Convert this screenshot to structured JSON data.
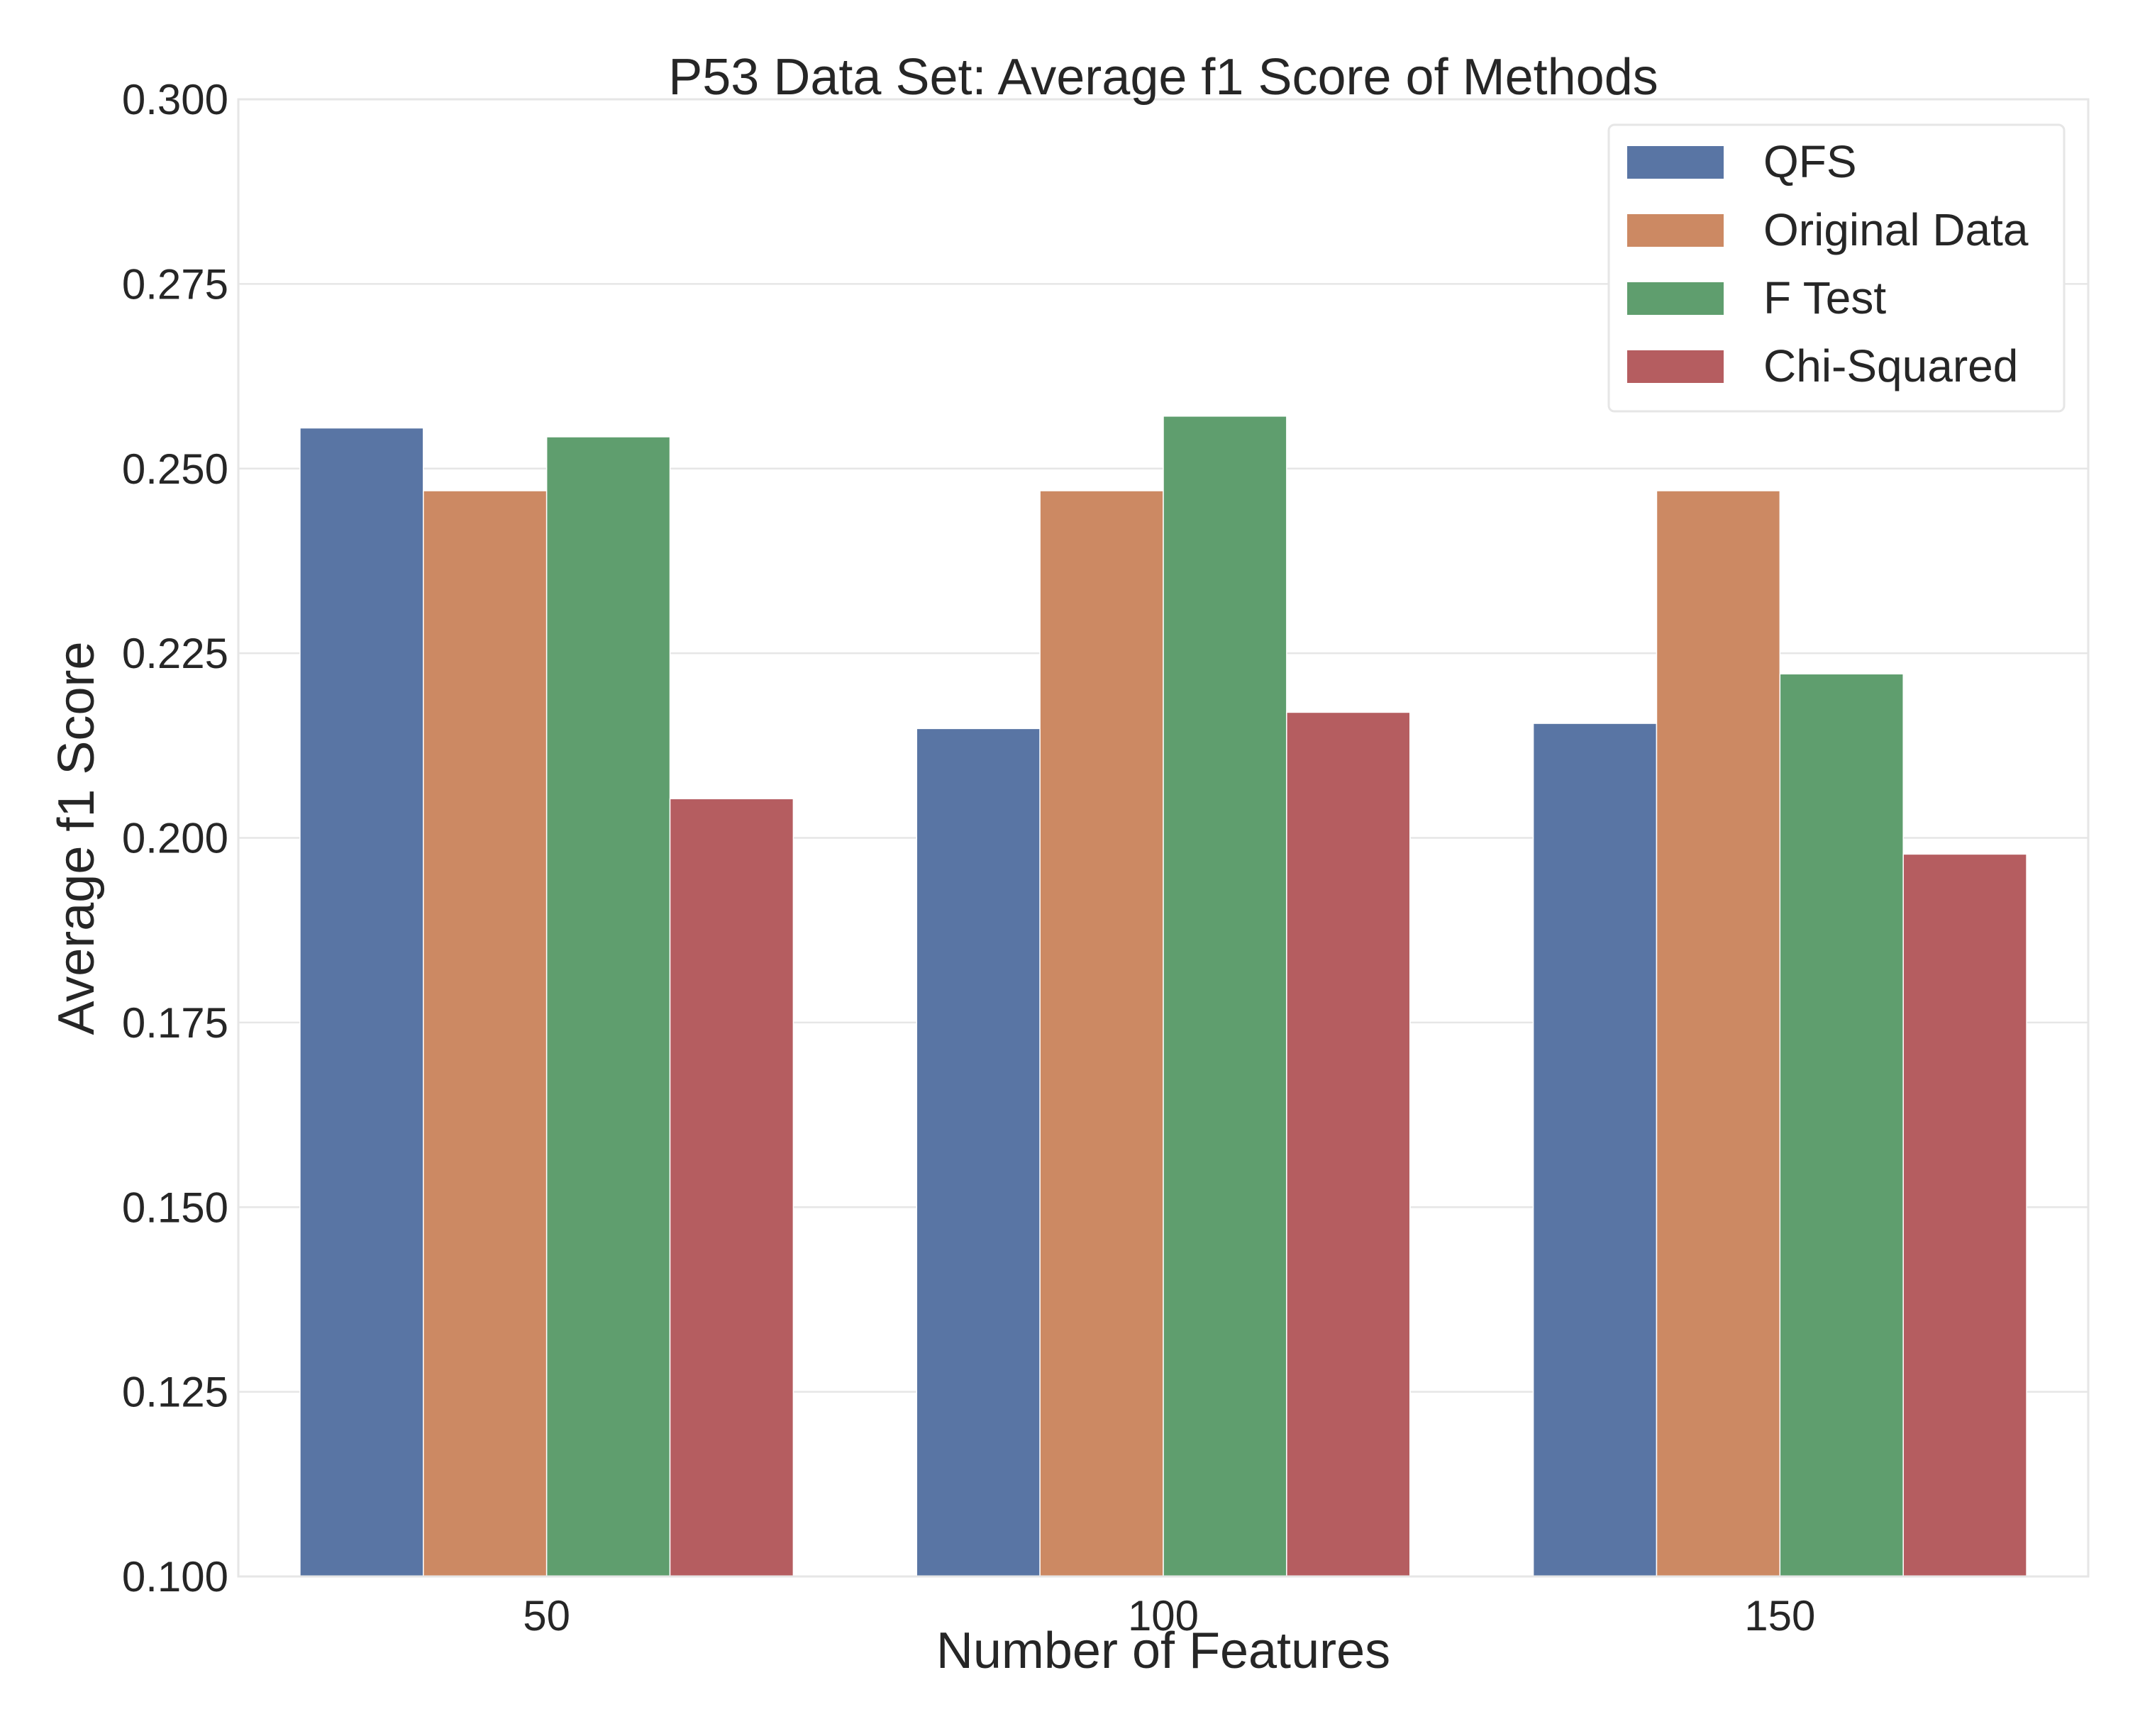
{
  "chart_data": {
    "type": "bar",
    "title": "P53 Data Set: Average f1 Score of Methods",
    "xlabel": "Number of Features",
    "ylabel": "Average f1 Score",
    "categories": [
      "50",
      "100",
      "150"
    ],
    "ylim": [
      0.1,
      0.3
    ],
    "yticks": [
      0.1,
      0.125,
      0.15,
      0.175,
      0.2,
      0.225,
      0.25,
      0.275,
      0.3
    ],
    "ytick_labels": [
      "0.100",
      "0.125",
      "0.150",
      "0.175",
      "0.200",
      "0.225",
      "0.250",
      "0.275",
      "0.300"
    ],
    "grid": true,
    "legend_position": "top-right",
    "series": [
      {
        "name": "QFS",
        "color": "#5975a4",
        "values": [
          0.2555,
          0.2148,
          0.2155
        ]
      },
      {
        "name": "Original Data",
        "color": "#cc8963",
        "values": [
          0.247,
          0.247,
          0.247
        ]
      },
      {
        "name": "F Test",
        "color": "#5f9e6e",
        "values": [
          0.2543,
          0.2571,
          0.2222
        ]
      },
      {
        "name": "Chi-Squared",
        "color": "#b55d60",
        "values": [
          0.2053,
          0.217,
          0.1978
        ]
      }
    ]
  }
}
